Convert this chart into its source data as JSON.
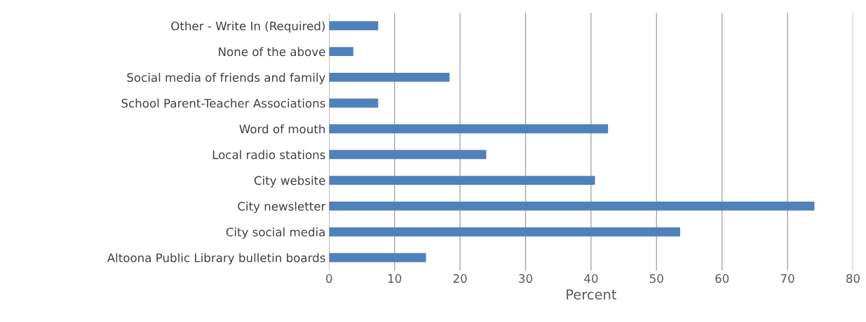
{
  "chart_data": {
    "type": "bar",
    "orientation": "horizontal",
    "xlabel": "Percent",
    "categories": [
      "Other - Write In (Required)",
      "None of the above",
      "Social media of friends and family",
      "School Parent-Teacher Associations",
      "Word of mouth",
      "Local radio stations",
      "City website",
      "City newsletter",
      "City social media",
      "Altoona Public Library bulletin boards"
    ],
    "values": [
      7.5,
      3.7,
      18.4,
      7.5,
      42.6,
      24.0,
      40.6,
      74.1,
      53.6,
      14.8
    ],
    "color": "#4f81bd",
    "xlim": [
      0,
      80
    ],
    "xticks": [
      0,
      10,
      20,
      30,
      40,
      50,
      60,
      70,
      80
    ],
    "grid": "x",
    "legend": false
  }
}
